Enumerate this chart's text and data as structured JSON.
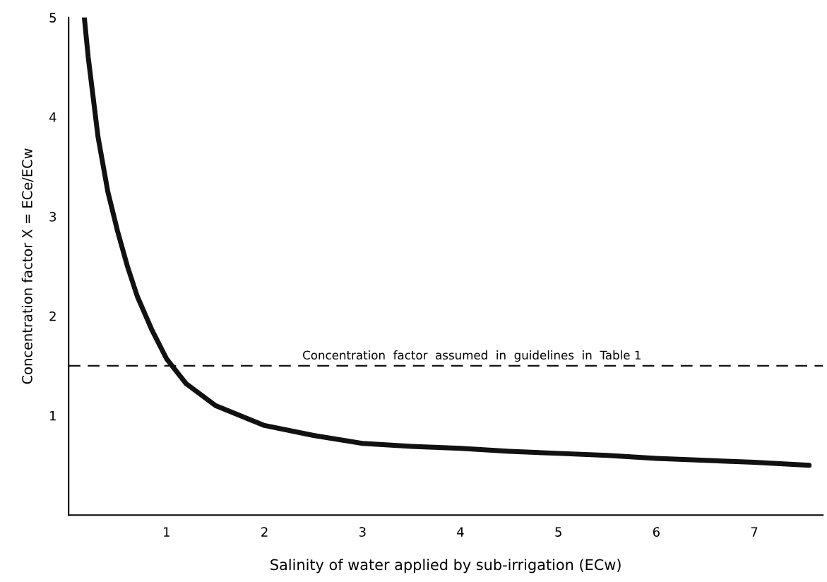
{
  "chart_data": {
    "type": "line",
    "xlabel": "Salinity of water applied by sub-irrigation (ECw)",
    "ylabel": "Concentration factor X = ECe/ECw",
    "series": [
      {
        "color": "#111111",
        "x": [
          0.16,
          0.2,
          0.25,
          0.3,
          0.4,
          0.5,
          0.6,
          0.7,
          0.85,
          1.0,
          1.2,
          1.5,
          2.0,
          2.5,
          3.0,
          3.5,
          4.0,
          4.5,
          5.0,
          5.5,
          6.0,
          6.5,
          7.0,
          7.56
        ],
        "values": [
          5.0,
          4.6,
          4.2,
          3.8,
          3.25,
          2.85,
          2.5,
          2.2,
          1.86,
          1.57,
          1.32,
          1.1,
          0.9,
          0.8,
          0.72,
          0.69,
          0.67,
          0.64,
          0.62,
          0.6,
          0.57,
          0.55,
          0.53,
          0.5
        ]
      }
    ],
    "xlim": [
      0,
      7.7
    ],
    "ylim": [
      0,
      5
    ],
    "xticks": [
      1,
      2,
      3,
      4,
      5,
      6,
      7
    ],
    "yticks": [
      1,
      2,
      3,
      4,
      5
    ],
    "grid": false,
    "legend": false,
    "line_style": "solid",
    "marker": "none",
    "ref_lines": [
      {
        "axis": "y",
        "value": 1.5,
        "label": "Concentration  factor  assumed  in  guidelines  in  Table 1",
        "color": "#111111",
        "line_style": "dashed"
      }
    ]
  }
}
